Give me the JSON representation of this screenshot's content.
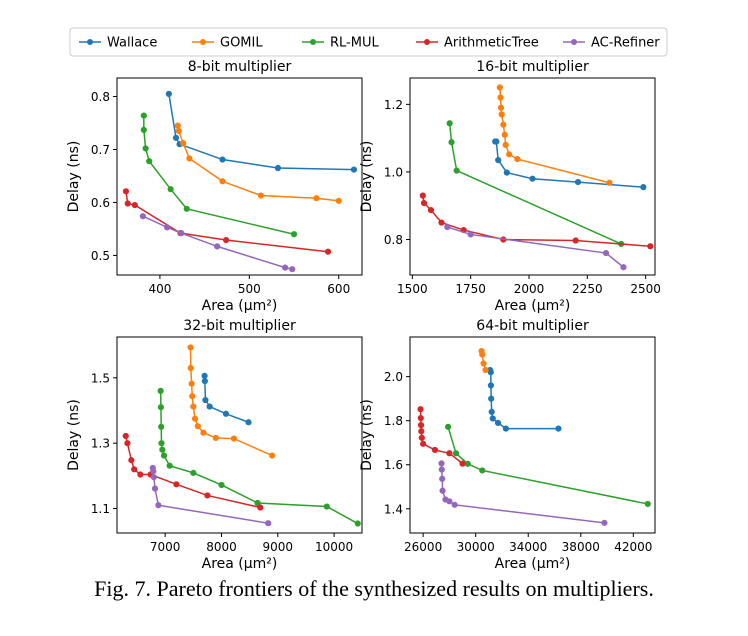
{
  "caption": "Fig. 7.  Pareto frontiers of the synthesized results on multipliers.",
  "legend": [
    {
      "name": "Wallace",
      "color": "#1f77b4"
    },
    {
      "name": "GOMIL",
      "color": "#ff7f0e"
    },
    {
      "name": "RL-MUL",
      "color": "#2ca02c"
    },
    {
      "name": "ArithmeticTree",
      "color": "#d62728"
    },
    {
      "name": "AC-Refiner",
      "color": "#9467bd"
    }
  ],
  "chart_data": [
    {
      "type": "line",
      "title": "8-bit multiplier",
      "xlabel": "Area (μm²)",
      "ylabel": "Delay (ns)",
      "xlim": [
        352,
        626
      ],
      "ylim": [
        0.463,
        0.835
      ],
      "xticks": [
        400,
        500,
        600
      ],
      "yticks": [
        0.5,
        0.6,
        0.7,
        0.8
      ],
      "ytick_labels": [
        "0.5",
        "0.6",
        "0.7",
        "0.8"
      ],
      "series": [
        {
          "name": "Wallace",
          "points": [
            [
              410,
              0.805
            ],
            [
              418,
              0.722
            ],
            [
              422,
              0.71
            ],
            [
              470,
              0.681
            ],
            [
              532,
              0.665
            ],
            [
              617,
              0.662
            ]
          ]
        },
        {
          "name": "GOMIL",
          "points": [
            [
              420,
              0.745
            ],
            [
              421,
              0.735
            ],
            [
              426,
              0.712
            ],
            [
              433,
              0.683
            ],
            [
              470,
              0.64
            ],
            [
              513,
              0.613
            ],
            [
              575,
              0.608
            ],
            [
              600,
              0.603
            ]
          ]
        },
        {
          "name": "RL-MUL",
          "points": [
            [
              382,
              0.764
            ],
            [
              382,
              0.737
            ],
            [
              384,
              0.702
            ],
            [
              388,
              0.678
            ],
            [
              412,
              0.625
            ],
            [
              430,
              0.588
            ],
            [
              550,
              0.54
            ]
          ]
        },
        {
          "name": "ArithmeticTree",
          "points": [
            [
              362,
              0.621
            ],
            [
              364,
              0.598
            ],
            [
              372,
              0.595
            ],
            [
              423,
              0.542
            ],
            [
              474,
              0.529
            ],
            [
              588,
              0.507
            ]
          ]
        },
        {
          "name": "AC-Refiner",
          "points": [
            [
              381,
              0.574
            ],
            [
              408,
              0.553
            ],
            [
              424,
              0.542
            ],
            [
              464,
              0.517
            ],
            [
              540,
              0.477
            ],
            [
              548,
              0.474
            ]
          ]
        }
      ]
    },
    {
      "type": "line",
      "title": "16-bit multiplier",
      "xlabel": "Area (μm²)",
      "ylabel": "Delay (ns)",
      "xlim": [
        1490,
        2540
      ],
      "ylim": [
        0.695,
        1.278
      ],
      "xticks": [
        1500,
        1750,
        2000,
        2250,
        2500
      ],
      "yticks": [
        0.8,
        1.0,
        1.2
      ],
      "ytick_labels": [
        "0.8",
        "1.0",
        "1.2"
      ],
      "series": [
        {
          "name": "Wallace",
          "points": [
            [
              1855,
              1.09
            ],
            [
              1860,
              1.09
            ],
            [
              1868,
              1.035
            ],
            [
              1905,
              0.998
            ],
            [
              2015,
              0.98
            ],
            [
              2210,
              0.97
            ],
            [
              2490,
              0.955
            ]
          ]
        },
        {
          "name": "GOMIL",
          "points": [
            [
              1875,
              1.25
            ],
            [
              1878,
              1.22
            ],
            [
              1880,
              1.19
            ],
            [
              1883,
              1.17
            ],
            [
              1890,
              1.14
            ],
            [
              1896,
              1.11
            ],
            [
              1900,
              1.08
            ],
            [
              1915,
              1.052
            ],
            [
              1950,
              1.038
            ],
            [
              2345,
              0.968
            ]
          ]
        },
        {
          "name": "RL-MUL",
          "points": [
            [
              1660,
              1.144
            ],
            [
              1668,
              1.088
            ],
            [
              1690,
              1.004
            ],
            [
              2395,
              0.787
            ]
          ]
        },
        {
          "name": "ArithmeticTree",
          "points": [
            [
              1545,
              0.93
            ],
            [
              1550,
              0.908
            ],
            [
              1580,
              0.887
            ],
            [
              1625,
              0.85
            ],
            [
              1720,
              0.828
            ],
            [
              1890,
              0.8
            ],
            [
              2200,
              0.797
            ],
            [
              2520,
              0.78
            ]
          ]
        },
        {
          "name": "AC-Refiner",
          "points": [
            [
              1650,
              0.837
            ],
            [
              1750,
              0.815
            ],
            [
              2330,
              0.76
            ],
            [
              2405,
              0.718
            ]
          ]
        }
      ]
    },
    {
      "type": "line",
      "title": "32-bit multiplier",
      "xlabel": "Area (μm²)",
      "ylabel": "Delay (ns)",
      "xlim": [
        6145,
        10495
      ],
      "ylim": [
        1.025,
        1.625
      ],
      "xticks": [
        7000,
        8000,
        9000,
        10000
      ],
      "yticks": [
        1.1,
        1.3,
        1.5
      ],
      "ytick_labels": [
        "1.1",
        "1.3",
        "1.5"
      ],
      "series": [
        {
          "name": "Wallace",
          "points": [
            [
              7700,
              1.506
            ],
            [
              7705,
              1.49
            ],
            [
              7715,
              1.432
            ],
            [
              7790,
              1.412
            ],
            [
              8080,
              1.39
            ],
            [
              8480,
              1.364
            ]
          ]
        },
        {
          "name": "GOMIL",
          "points": [
            [
              7450,
              1.593
            ],
            [
              7455,
              1.53
            ],
            [
              7470,
              1.482
            ],
            [
              7480,
              1.444
            ],
            [
              7500,
              1.412
            ],
            [
              7530,
              1.375
            ],
            [
              7580,
              1.352
            ],
            [
              7680,
              1.332
            ],
            [
              7900,
              1.316
            ],
            [
              8220,
              1.314
            ],
            [
              8900,
              1.262
            ]
          ]
        },
        {
          "name": "RL-MUL",
          "points": [
            [
              6920,
              1.46
            ],
            [
              6925,
              1.41
            ],
            [
              6930,
              1.35
            ],
            [
              6935,
              1.3
            ],
            [
              6950,
              1.28
            ],
            [
              6980,
              1.262
            ],
            [
              7080,
              1.231
            ],
            [
              7500,
              1.209
            ],
            [
              8000,
              1.172
            ],
            [
              8640,
              1.117
            ],
            [
              9870,
              1.106
            ],
            [
              10420,
              1.054
            ]
          ]
        },
        {
          "name": "ArithmeticTree",
          "points": [
            [
              6300,
              1.322
            ],
            [
              6330,
              1.3
            ],
            [
              6400,
              1.248
            ],
            [
              6450,
              1.22
            ],
            [
              6560,
              1.204
            ],
            [
              6740,
              1.204
            ],
            [
              7200,
              1.174
            ],
            [
              7750,
              1.14
            ],
            [
              8690,
              1.103
            ]
          ]
        },
        {
          "name": "AC-Refiner",
          "points": [
            [
              6780,
              1.224
            ],
            [
              6790,
              1.214
            ],
            [
              6800,
              1.196
            ],
            [
              6820,
              1.161
            ],
            [
              6880,
              1.11
            ],
            [
              8830,
              1.055
            ]
          ]
        }
      ]
    },
    {
      "type": "line",
      "title": "64-bit multiplier",
      "xlabel": "Area (μm²)",
      "ylabel": "Delay (ns)",
      "xlim": [
        25000,
        43650
      ],
      "ylim": [
        1.29,
        2.18
      ],
      "xticks": [
        26000,
        30000,
        34000,
        38000,
        42000
      ],
      "yticks": [
        1.4,
        1.6,
        1.8,
        2.0
      ],
      "ytick_labels": [
        "1.4",
        "1.6",
        "1.8",
        "2.0"
      ],
      "series": [
        {
          "name": "Wallace",
          "points": [
            [
              31100,
              2.03
            ],
            [
              31150,
              2.02
            ],
            [
              31160,
              1.96
            ],
            [
              31180,
              1.9
            ],
            [
              31220,
              1.84
            ],
            [
              31300,
              1.81
            ],
            [
              31700,
              1.79
            ],
            [
              32300,
              1.764
            ],
            [
              36300,
              1.764
            ]
          ]
        },
        {
          "name": "GOMIL",
          "points": [
            [
              30450,
              2.116
            ],
            [
              30500,
              2.1
            ],
            [
              30600,
              2.06
            ],
            [
              30750,
              2.03
            ]
          ]
        },
        {
          "name": "RL-MUL",
          "points": [
            [
              27900,
              1.772
            ],
            [
              28500,
              1.652
            ],
            [
              29400,
              1.604
            ],
            [
              30500,
              1.574
            ],
            [
              43100,
              1.422
            ]
          ]
        },
        {
          "name": "ArithmeticTree",
          "points": [
            [
              25800,
              1.852
            ],
            [
              25820,
              1.812
            ],
            [
              25840,
              1.78
            ],
            [
              25860,
              1.752
            ],
            [
              25900,
              1.722
            ],
            [
              26000,
              1.695
            ],
            [
              26900,
              1.667
            ],
            [
              28000,
              1.652
            ],
            [
              29000,
              1.605
            ]
          ]
        },
        {
          "name": "AC-Refiner",
          "points": [
            [
              27400,
              1.606
            ],
            [
              27420,
              1.578
            ],
            [
              27450,
              1.536
            ],
            [
              27480,
              1.482
            ],
            [
              27700,
              1.442
            ],
            [
              28000,
              1.434
            ],
            [
              28400,
              1.418
            ],
            [
              39800,
              1.336
            ]
          ]
        }
      ]
    }
  ]
}
